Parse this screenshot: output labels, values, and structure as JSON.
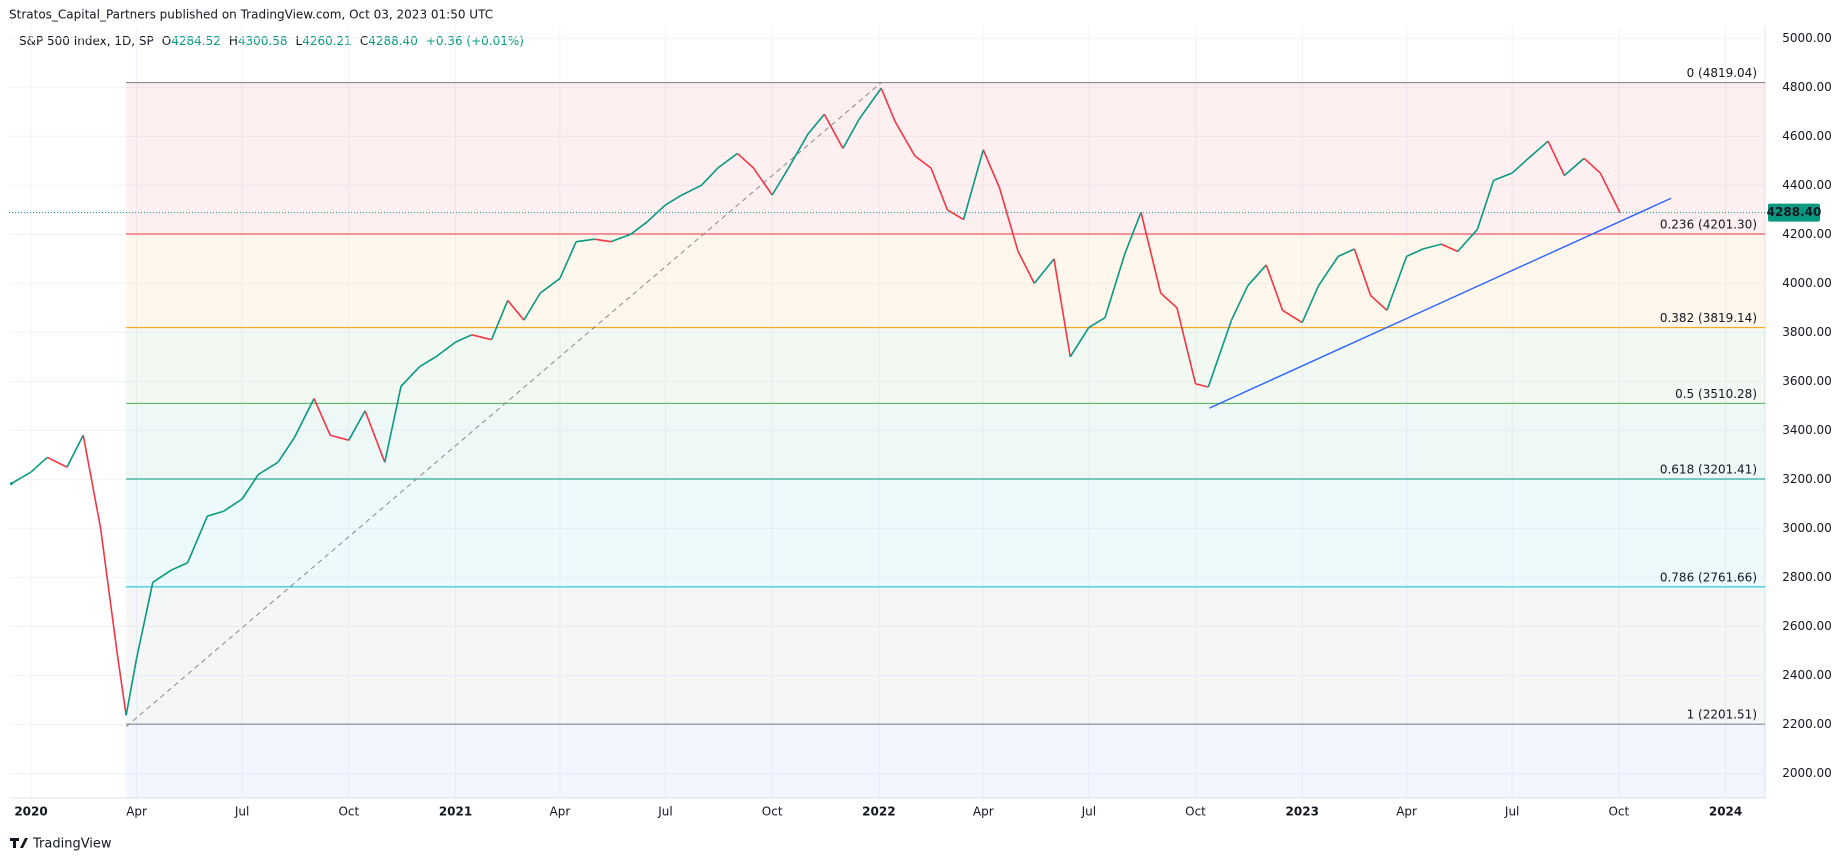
{
  "header": "Stratos_Capital_Partners published on TradingView.com, Oct 03, 2023 01:50 UTC",
  "footer": "TradingView",
  "chart_data": {
    "type": "line",
    "symbol": "S&P 500 Index, 1D, SP",
    "ohlc": [
      {
        "label": "O",
        "value": "4284.52"
      },
      {
        "label": "H",
        "value": "4300.58"
      },
      {
        "label": "L",
        "value": "4260.21"
      },
      {
        "label": "C",
        "value": "4288.40"
      }
    ],
    "change": "+0.36 (+0.01%)",
    "last_price": {
      "value": 4288.4,
      "label": "4288.40"
    },
    "up_color": "#089981",
    "down_color": "#f23645",
    "x": [
      "2019-12-15",
      "2020-01-01",
      "2020-01-15",
      "2020-02-01",
      "2020-02-15",
      "2020-03-01",
      "2020-03-15",
      "2020-03-23",
      "2020-04-01",
      "2020-04-15",
      "2020-05-01",
      "2020-05-15",
      "2020-06-01",
      "2020-06-15",
      "2020-07-01",
      "2020-07-15",
      "2020-08-01",
      "2020-08-15",
      "2020-09-01",
      "2020-09-15",
      "2020-10-01",
      "2020-10-15",
      "2020-11-01",
      "2020-11-15",
      "2020-12-01",
      "2020-12-15",
      "2021-01-01",
      "2021-01-15",
      "2021-02-01",
      "2021-02-15",
      "2021-03-01",
      "2021-03-15",
      "2021-04-01",
      "2021-04-15",
      "2021-05-01",
      "2021-05-15",
      "2021-06-01",
      "2021-06-15",
      "2021-07-01",
      "2021-07-15",
      "2021-08-01",
      "2021-08-15",
      "2021-09-01",
      "2021-09-15",
      "2021-10-01",
      "2021-10-15",
      "2021-11-01",
      "2021-11-15",
      "2021-12-01",
      "2021-12-15",
      "2022-01-03",
      "2022-01-15",
      "2022-02-01",
      "2022-02-15",
      "2022-03-01",
      "2022-03-15",
      "2022-04-01",
      "2022-04-15",
      "2022-05-01",
      "2022-05-15",
      "2022-06-01",
      "2022-06-15",
      "2022-07-01",
      "2022-07-15",
      "2022-08-01",
      "2022-08-15",
      "2022-09-01",
      "2022-09-15",
      "2022-10-01",
      "2022-10-12",
      "2022-11-01",
      "2022-11-15",
      "2022-12-01",
      "2022-12-15",
      "2023-01-01",
      "2023-01-15",
      "2023-02-01",
      "2023-02-15",
      "2023-03-01",
      "2023-03-15",
      "2023-04-01",
      "2023-04-15",
      "2023-05-01",
      "2023-05-15",
      "2023-06-01",
      "2023-06-15",
      "2023-07-01",
      "2023-07-15",
      "2023-08-01",
      "2023-08-15",
      "2023-09-01",
      "2023-09-15",
      "2023-10-02"
    ],
    "values": [
      3183,
      3230,
      3290,
      3250,
      3380,
      3000,
      2500,
      2237,
      2470,
      2780,
      2830,
      2860,
      3050,
      3070,
      3120,
      3220,
      3270,
      3370,
      3530,
      3380,
      3360,
      3480,
      3270,
      3580,
      3660,
      3700,
      3760,
      3790,
      3770,
      3930,
      3850,
      3960,
      4020,
      4170,
      4180,
      4170,
      4200,
      4250,
      4320,
      4360,
      4400,
      4470,
      4530,
      4470,
      4360,
      4470,
      4610,
      4690,
      4550,
      4670,
      4796,
      4660,
      4520,
      4470,
      4300,
      4260,
      4545,
      4390,
      4130,
      4000,
      4100,
      3700,
      3820,
      3860,
      4120,
      4290,
      3960,
      3900,
      3590,
      3577,
      3850,
      3990,
      4075,
      3890,
      3840,
      3990,
      4110,
      4140,
      3950,
      3890,
      4110,
      4140,
      4160,
      4130,
      4220,
      4420,
      4450,
      4510,
      4580,
      4440,
      4510,
      4450,
      4288.4
    ],
    "xlim": [
      "2019-12-13",
      "2024-02-04"
    ],
    "ylim": [
      1900,
      5050
    ],
    "xticks": [
      {
        "value": "2020-01-01",
        "label": "2020"
      },
      {
        "value": "2020-04-01",
        "label": "Apr"
      },
      {
        "value": "2020-07-01",
        "label": "Jul"
      },
      {
        "value": "2020-10-01",
        "label": "Oct"
      },
      {
        "value": "2021-01-01",
        "label": "2021"
      },
      {
        "value": "2021-04-01",
        "label": "Apr"
      },
      {
        "value": "2021-07-01",
        "label": "Jul"
      },
      {
        "value": "2021-10-01",
        "label": "Oct"
      },
      {
        "value": "2022-01-01",
        "label": "2022"
      },
      {
        "value": "2022-04-01",
        "label": "Apr"
      },
      {
        "value": "2022-07-01",
        "label": "Jul"
      },
      {
        "value": "2022-10-01",
        "label": "Oct"
      },
      {
        "value": "2023-01-01",
        "label": "2023"
      },
      {
        "value": "2023-04-01",
        "label": "Apr"
      },
      {
        "value": "2023-07-01",
        "label": "Jul"
      },
      {
        "value": "2023-10-01",
        "label": "Oct"
      },
      {
        "value": "2024-01-01",
        "label": "2024"
      }
    ],
    "yticks": [
      {
        "value": 2000,
        "label": "2000.00"
      },
      {
        "value": 2200,
        "label": "2200.00"
      },
      {
        "value": 2400,
        "label": "2400.00"
      },
      {
        "value": 2600,
        "label": "2600.00"
      },
      {
        "value": 2800,
        "label": "2800.00"
      },
      {
        "value": 3000,
        "label": "3000.00"
      },
      {
        "value": 3200,
        "label": "3200.00"
      },
      {
        "value": 3400,
        "label": "3400.00"
      },
      {
        "value": 3600,
        "label": "3600.00"
      },
      {
        "value": 3800,
        "label": "3800.00"
      },
      {
        "value": 4000,
        "label": "4000.00"
      },
      {
        "value": 4200,
        "label": "4200.00"
      },
      {
        "value": 4400,
        "label": "4400.00"
      },
      {
        "value": 4600,
        "label": "4600.00"
      },
      {
        "value": 4800,
        "label": "4800.00"
      },
      {
        "value": 5000,
        "label": "5000.00"
      }
    ],
    "grid": true,
    "fib": {
      "start": "2020-03-23",
      "levels": [
        {
          "price": 4819.04,
          "label": "0 (4819.04)",
          "color": "#787b86",
          "fill": "rgba(242,54,69,0.08)"
        },
        {
          "price": 4201.3,
          "label": "0.236 (4201.30)",
          "color": "#f23645",
          "fill": "rgba(255,152,0,0.08)"
        },
        {
          "price": 3819.14,
          "label": "0.382 (3819.14)",
          "color": "#ff9800",
          "fill": "rgba(76,175,80,0.07)"
        },
        {
          "price": 3510.28,
          "label": "0.5 (3510.28)",
          "color": "#4caf50",
          "fill": "rgba(8,153,129,0.07)"
        },
        {
          "price": 3201.41,
          "label": "0.618 (3201.41)",
          "color": "#089981",
          "fill": "rgba(0,188,212,0.07)"
        },
        {
          "price": 2761.66,
          "label": "0.786 (2761.66)",
          "color": "#00bcd4",
          "fill": "rgba(120,123,134,0.07)"
        },
        {
          "price": 2201.51,
          "label": "1 (2201.51)",
          "color": "#787b86",
          "fill": "rgba(41,98,255,0.06)"
        }
      ]
    },
    "fib_trend": {
      "x": [
        "2020-03-23",
        "2022-01-03"
      ],
      "values": [
        2191,
        4819
      ],
      "color": "#888888"
    },
    "trendline": {
      "x": [
        "2022-10-13",
        "2023-11-15"
      ],
      "values": [
        3491,
        4347
      ],
      "color": "#2962ff"
    }
  }
}
